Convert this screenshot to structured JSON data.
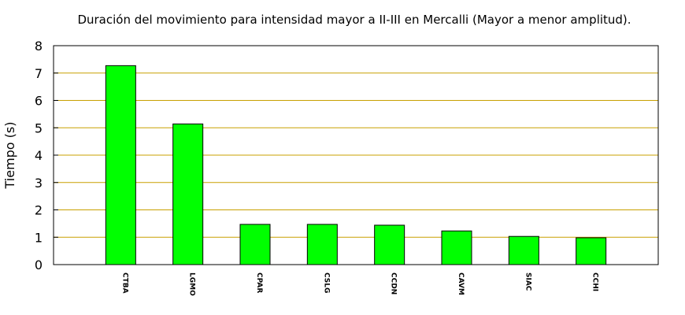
{
  "chart_data": {
    "type": "bar",
    "title": "Duración del movimiento para intensidad mayor a II-III en Mercalli (Mayor a menor amplitud).",
    "xlabel": "",
    "ylabel": "Tiempo (s)",
    "categories": [
      "CTBA",
      "LGMO",
      "CPAR",
      "CSLG",
      "CCDN",
      "CAVM",
      "SIAC",
      "CCHI"
    ],
    "values": [
      7.27,
      5.14,
      1.47,
      1.47,
      1.44,
      1.23,
      1.03,
      0.98
    ],
    "ylim": [
      0,
      8
    ],
    "yticks": [
      0,
      1,
      2,
      3,
      4,
      5,
      6,
      7,
      8
    ],
    "grid": true,
    "colors": {
      "bar": "#00ff00",
      "grid": "#c8a000"
    }
  }
}
